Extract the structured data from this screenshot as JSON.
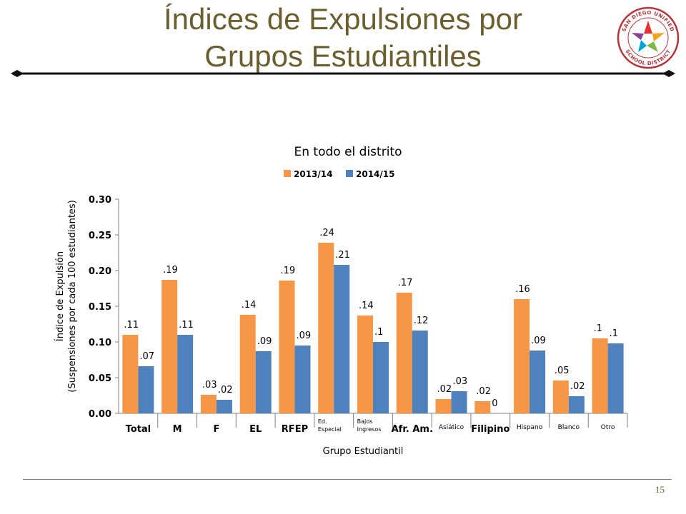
{
  "slide": {
    "title_line1": "Índices de Expulsiones por",
    "title_line2": "Grupos Estudiantiles",
    "page_number": "15",
    "logo_text": "SAN DIEGO UNIFIED SCHOOL DISTRICT",
    "title_color": "#6b5e2e"
  },
  "chart_data": {
    "type": "bar",
    "title": "En todo el distrito",
    "xlabel": "Grupo Estudiantil",
    "ylabel_line1": "Índice de Expulsión",
    "ylabel_line2": "(Suspensiones por cada 100 estudiantes)",
    "ylim": [
      0,
      0.3
    ],
    "yticks": [
      "0.00",
      "0.05",
      "0.10",
      "0.15",
      "0.20",
      "0.25",
      "0.30"
    ],
    "legend_position": "top",
    "categories": [
      "Total",
      "M",
      "F",
      "EL",
      "RFEP",
      "Ed. Especial",
      "Bajos Ingresos",
      "Afr. Am.",
      "Asiático",
      "Filipino",
      "Hispano",
      "Blanco",
      "Otro"
    ],
    "category_style": [
      "bold",
      "bold",
      "bold",
      "bold",
      "bold",
      "small",
      "small",
      "bold",
      "small",
      "bold",
      "small",
      "small",
      "small"
    ],
    "series": [
      {
        "name": "2013/14",
        "color": "#f79646",
        "values": [
          0.11,
          0.187,
          0.026,
          0.138,
          0.186,
          0.239,
          0.137,
          0.169,
          0.02,
          0.017,
          0.16,
          0.046,
          0.105
        ],
        "labels": [
          ".11",
          ".19",
          ".03",
          ".14",
          ".19",
          ".24",
          ".14",
          ".17",
          ".02",
          ".02",
          ".16",
          ".05",
          ".1"
        ]
      },
      {
        "name": "2014/15",
        "color": "#4f81bd",
        "values": [
          0.066,
          0.11,
          0.019,
          0.087,
          0.095,
          0.208,
          0.1,
          0.116,
          0.031,
          0,
          0.088,
          0.024,
          0.098
        ],
        "labels": [
          ".07",
          ".11",
          ".02",
          ".09",
          ".09",
          ".21",
          ".1",
          ".12",
          ".03",
          "0",
          ".09",
          ".02",
          ".1"
        ]
      }
    ]
  }
}
